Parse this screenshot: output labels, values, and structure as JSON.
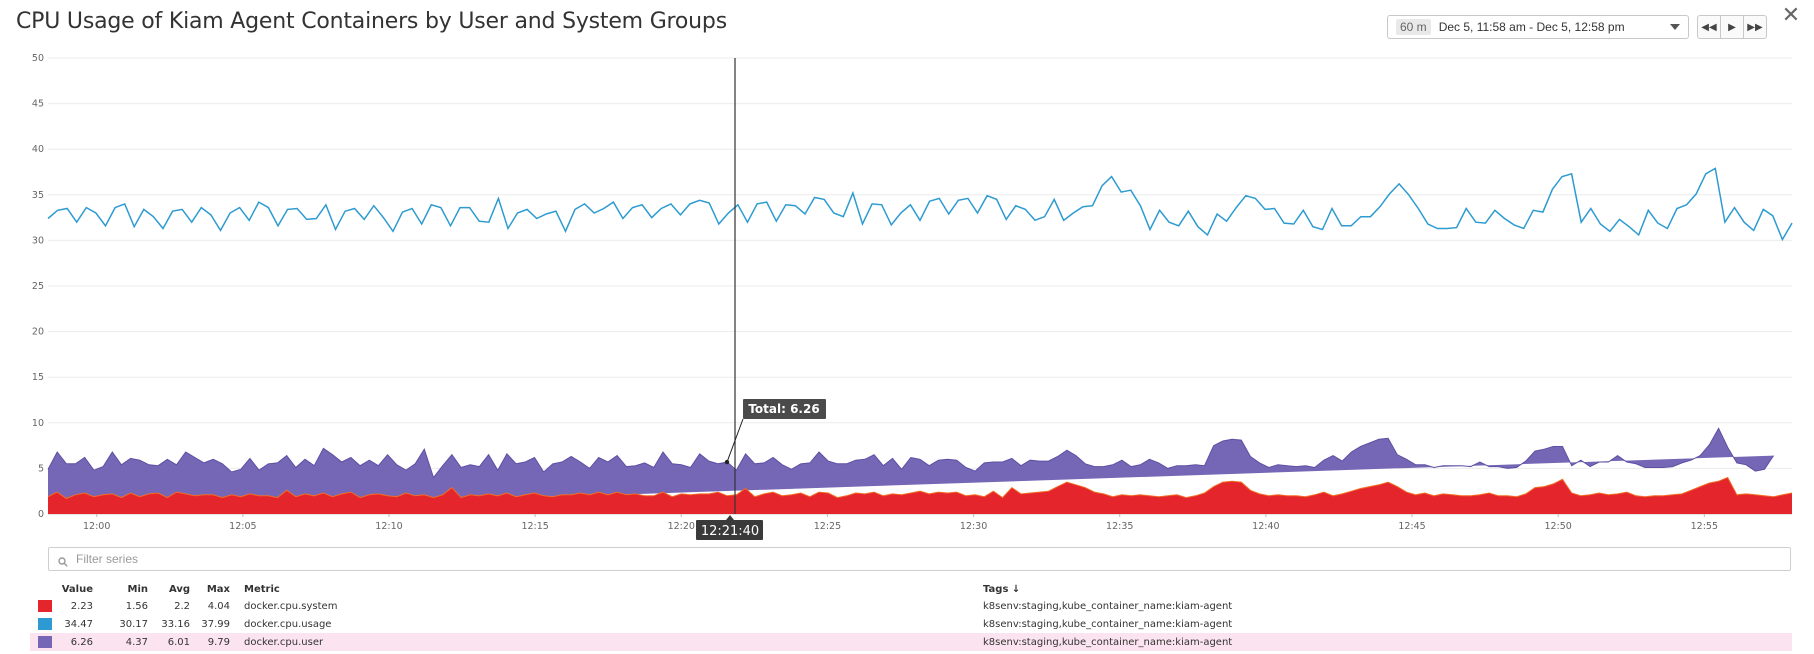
{
  "window": {
    "title": "CPU Usage of Kiam Agent Containers by User and System Groups",
    "close_icon": "close-icon"
  },
  "time_controls": {
    "span_label": "60 m",
    "range_label": "Dec 5, 11:58 am - Dec 5, 12:58 pm",
    "buttons": [
      "rewind-icon",
      "play-icon",
      "fast-forward-icon"
    ]
  },
  "chart_data": {
    "type": "area",
    "title": "CPU Usage of Kiam Agent Containers by User and System Groups",
    "xlabel": "",
    "ylabel": "",
    "ylim": [
      0,
      50
    ],
    "yticks": [
      "0",
      "5",
      "10",
      "15",
      "20",
      "25",
      "30",
      "35",
      "40",
      "45",
      "50"
    ],
    "x_range": [
      "11:58:20",
      "12:58:00"
    ],
    "xticks": [
      "12:00",
      "12:05",
      "12:10",
      "12:15",
      "12:20",
      "12:25",
      "12:30",
      "12:35",
      "12:40",
      "12:45",
      "12:50",
      "12:55"
    ],
    "grid": true,
    "legend_position": "bottom table",
    "cursor": {
      "time": "12:21:40",
      "tooltip": "Total: 6.26"
    },
    "series": [
      {
        "name": "docker.cpu.system",
        "render": "stacked-area",
        "color": "#e4262c",
        "values": [
          1.9,
          2.4,
          1.7,
          2.1,
          2.3,
          1.9,
          2.1,
          2.2,
          1.8,
          2.3,
          1.9,
          2.2,
          2.3,
          1.8,
          2.4,
          2.2,
          2.0,
          2.1,
          2.1,
          1.8,
          2.1,
          1.9,
          2.2,
          2.0,
          2.0,
          1.8,
          2.6,
          1.9,
          2.2,
          2.0,
          2.3,
          1.9,
          2.2,
          2.4,
          1.8,
          2.1,
          2.2,
          2.0,
          1.9,
          2.3,
          2.0,
          2.1,
          1.8,
          2.1,
          2.9,
          1.8,
          2.1,
          2.0,
          2.2,
          2.0,
          2.3,
          1.9,
          2.1,
          2.3,
          2.0,
          1.9,
          2.1,
          2.1,
          2.3,
          2.1,
          2.4,
          2.1,
          2.4,
          2.1,
          2.2,
          2.0,
          2.0,
          2.4,
          1.9,
          2.2,
          2.1,
          2.2,
          2.2,
          2.4,
          2.0,
          2.1,
          2.8,
          1.9,
          2.2,
          2.4,
          2.0,
          2.1,
          2.3,
          1.9,
          2.4,
          2.3,
          1.8,
          2.0,
          2.3,
          2.2,
          2.4,
          2.0,
          2.2,
          2.1,
          2.3,
          2.5,
          2.2,
          2.4,
          2.3,
          2.4,
          2.0,
          2.1,
          1.9,
          2.5,
          1.8,
          2.9,
          2.2,
          2.3,
          2.4,
          2.5,
          3.0,
          3.5,
          3.2,
          2.9,
          2.4,
          2.2,
          1.9,
          2.1,
          2.0,
          2.1,
          2.0,
          1.9,
          2.0,
          2.1,
          1.8,
          2.0,
          2.3,
          3.0,
          3.5,
          3.6,
          3.5,
          2.6,
          2.2,
          2.0,
          2.1,
          2.0,
          2.0,
          1.9,
          2.1,
          2.4,
          2.0,
          2.2,
          2.5,
          2.8,
          3.0,
          3.2,
          3.5,
          3.0,
          2.4,
          2.1,
          2.3,
          2.0,
          2.2,
          2.1,
          2.0,
          2.0,
          2.1,
          2.3,
          2.0,
          2.0,
          1.9,
          2.2,
          2.9,
          3.0,
          3.3,
          3.8,
          2.3,
          2.0,
          2.1,
          2.3,
          2.1,
          2.2,
          2.4,
          2.0,
          1.9,
          2.0,
          2.0,
          2.1,
          2.2,
          2.6,
          3.0,
          3.4,
          3.6,
          4.0,
          2.1,
          2.2,
          2.1,
          2.0,
          1.9,
          2.1,
          2.3
        ]
      },
      {
        "name": "docker.cpu.user",
        "render": "stacked-area",
        "color": "#7567b5",
        "values": [
          3.0,
          4.4,
          3.8,
          3.4,
          3.9,
          2.9,
          3.1,
          4.6,
          3.6,
          3.8,
          4.0,
          3.2,
          3.0,
          4.2,
          3.0,
          4.6,
          4.2,
          3.5,
          3.9,
          3.7,
          2.5,
          3.0,
          3.9,
          2.8,
          3.5,
          3.8,
          3.8,
          3.2,
          3.8,
          3.3,
          4.9,
          4.6,
          3.5,
          3.8,
          3.5,
          3.8,
          3.1,
          4.5,
          3.5,
          2.5,
          3.5,
          5.0,
          2.2,
          3.2,
          3.6,
          3.3,
          3.3,
          3.2,
          4.3,
          2.8,
          4.3,
          3.6,
          3.6,
          3.9,
          2.6,
          3.6,
          3.6,
          4.2,
          3.4,
          2.9,
          3.8,
          3.6,
          4.0,
          3.1,
          3.1,
          3.6,
          3.1,
          4.4,
          3.6,
          3.2,
          3.0,
          4.4,
          3.6,
          3.1,
          3.7,
          2.7,
          3.8,
          3.6,
          3.4,
          3.8,
          3.4,
          2.8,
          3.2,
          3.7,
          4.4,
          3.5,
          3.7,
          3.5,
          3.6,
          3.8,
          4.1,
          3.3,
          3.9,
          2.8,
          3.9,
          3.5,
          3.1,
          3.5,
          3.7,
          3.5,
          3.1,
          2.6,
          3.7,
          3.2,
          3.9,
          3.2,
          3.1,
          3.6,
          3.4,
          3.3,
          3.3,
          3.5,
          3.2,
          2.6,
          2.8,
          3.0,
          3.5,
          3.8,
          3.2,
          3.3,
          4.0,
          3.7,
          3.0,
          3.2,
          3.5,
          3.4,
          3.0,
          4.5,
          4.5,
          4.6,
          4.6,
          3.7,
          3.4,
          3.1,
          3.3,
          3.3,
          3.2,
          3.4,
          3.0,
          3.5,
          4.4,
          3.6,
          4.3,
          4.6,
          4.8,
          5.0,
          4.8,
          3.5,
          3.6,
          3.3,
          3.1,
          3.1,
          3.1,
          3.2,
          3.3,
          3.2,
          3.6,
          2.9,
          3.2,
          3.0,
          3.2,
          3.6,
          4.0,
          4.1,
          4.1,
          3.6,
          3.0,
          3.9,
          3.1,
          3.4,
          3.6,
          4.2,
          3.3,
          3.5,
          3.2,
          3.1,
          3.1,
          3.1,
          3.4,
          3.3,
          3.4,
          4.2,
          5.8,
          3.3,
          3.5,
          3.2,
          2.6,
          2.9,
          4.5
        ]
      },
      {
        "name": "docker.cpu.usage",
        "render": "line",
        "color": "#2d9bd1",
        "values": [
          32.4,
          33.3,
          33.5,
          32.0,
          33.6,
          33.0,
          31.6,
          33.6,
          34.0,
          31.5,
          33.4,
          32.6,
          31.3,
          33.2,
          33.4,
          32.0,
          33.6,
          32.8,
          31.1,
          33.0,
          33.6,
          32.2,
          34.2,
          33.6,
          31.6,
          33.4,
          33.5,
          32.3,
          32.4,
          33.9,
          31.2,
          33.2,
          33.5,
          32.3,
          33.8,
          32.5,
          31.0,
          33.1,
          33.5,
          31.8,
          33.9,
          33.6,
          31.6,
          33.6,
          33.6,
          32.1,
          32.0,
          34.6,
          31.3,
          33.0,
          33.4,
          32.4,
          32.9,
          33.2,
          31.0,
          33.4,
          34.0,
          33.0,
          33.5,
          34.2,
          32.4,
          33.6,
          33.9,
          32.5,
          33.5,
          34.0,
          32.8,
          34.0,
          34.4,
          34.1,
          31.8,
          33.0,
          33.9,
          32.0,
          34.0,
          34.2,
          32.1,
          33.9,
          33.8,
          32.9,
          34.7,
          34.5,
          33.0,
          32.6,
          35.2,
          31.8,
          34.0,
          33.9,
          31.7,
          33.0,
          33.9,
          32.2,
          34.3,
          34.6,
          32.9,
          34.4,
          34.6,
          33.0,
          34.9,
          34.5,
          32.3,
          33.8,
          33.4,
          32.2,
          32.6,
          34.5,
          32.2,
          33.0,
          33.7,
          33.8,
          36.0,
          37.0,
          35.3,
          35.5,
          33.8,
          31.2,
          33.3,
          32.0,
          31.6,
          33.2,
          31.5,
          30.6,
          32.9,
          32.1,
          33.6,
          34.9,
          34.6,
          33.4,
          33.5,
          31.9,
          31.8,
          33.3,
          31.5,
          31.2,
          33.5,
          31.6,
          31.6,
          32.6,
          32.6,
          33.7,
          35.1,
          36.2,
          35.0,
          33.5,
          31.8,
          31.3,
          31.3,
          31.4,
          33.5,
          32.0,
          31.9,
          33.3,
          32.4,
          31.7,
          31.3,
          33.3,
          33.1,
          35.6,
          37.0,
          37.3,
          32.0,
          33.5,
          31.8,
          31.0,
          32.3,
          31.5,
          30.6,
          33.3,
          31.9,
          31.3,
          33.5,
          33.9,
          35.1,
          37.3,
          37.9,
          32.0,
          33.6,
          32.0,
          31.1,
          33.4,
          32.7,
          30.1,
          31.9
        ]
      }
    ]
  },
  "filter": {
    "placeholder": "Filter series",
    "icon": "search-icon"
  },
  "legend": {
    "headers": {
      "value": "Value",
      "min": "Min",
      "avg": "Avg",
      "max": "Max",
      "metric": "Metric",
      "tags": "Tags ↓"
    },
    "rows": [
      {
        "color": "#e4262c",
        "value": "2.23",
        "min": "1.56",
        "avg": "2.2",
        "max": "4.04",
        "metric": "docker.cpu.system",
        "tags": "k8senv:staging,kube_container_name:kiam-agent",
        "highlighted": false
      },
      {
        "color": "#2d9bd1",
        "value": "34.47",
        "min": "30.17",
        "avg": "33.16",
        "max": "37.99",
        "metric": "docker.cpu.usage",
        "tags": "k8senv:staging,kube_container_name:kiam-agent",
        "highlighted": false
      },
      {
        "color": "#7567b5",
        "value": "6.26",
        "min": "4.37",
        "avg": "6.01",
        "max": "9.79",
        "metric": "docker.cpu.user",
        "tags": "k8senv:staging,kube_container_name:kiam-agent",
        "highlighted": true
      }
    ]
  }
}
